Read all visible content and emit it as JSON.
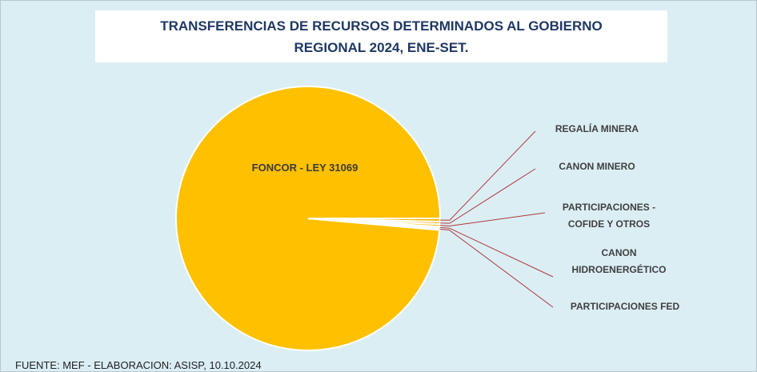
{
  "chart_data": {
    "type": "pie",
    "title": "TRANSFERENCIAS DE RECURSOS DETERMINADOS AL GOBIERNO REGIONAL 2024, ENE-SET.",
    "categories": [
      "FONCOR - LEY 31069",
      "REGALÍA  MINERA",
      "CANON MINERO",
      "PARTICIPACIONES  - COFIDE  Y OTROS",
      "CANON HIDROENERGÉTICO",
      "PARTICIPACIONES  FED"
    ],
    "values": [
      98.6,
      0.4,
      0.3,
      0.3,
      0.2,
      0.2
    ],
    "colors": [
      "#ffc000",
      "#f4b400",
      "#f0a800",
      "#ffc000",
      "#f4b400",
      "#f0a800"
    ],
    "source": "FUENTE:  MEF - ELABORACION:  ASISP, 10.10.2024"
  }
}
